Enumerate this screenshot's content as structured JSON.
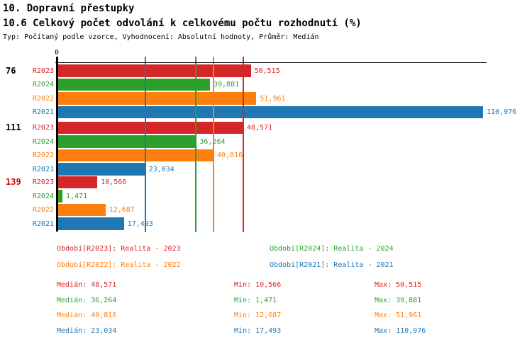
{
  "header": {
    "title_line1": "10. Dopravní přestupky",
    "title_line2": "10.6 Celkový počet odvolání k celkovému počtu rozhodnutí (%)",
    "subtitle": "Typ: Počítaný podle vzorce, Vyhodnocení: Absolutní hodnoty, Průměr: Medián"
  },
  "colors": {
    "red": "#d62728",
    "green": "#2ca02c",
    "orange": "#ff7f0e",
    "blue": "#1f77b4",
    "highlight_red": "#dd0000",
    "black": "#000000"
  },
  "chart_data": {
    "type": "bar",
    "orientation": "horizontal",
    "title": "10.6 Celkový počet odvolání k celkovému počtu rozhodnutí (%)",
    "axis": {
      "zero_label": "0",
      "xlim": [
        0,
        110976
      ],
      "grid": "median-lines-per-series"
    },
    "categories": [
      {
        "label": "76",
        "color": "#000000"
      },
      {
        "label": "111",
        "color": "#000000"
      },
      {
        "label": "139",
        "color": "#dd0000"
      }
    ],
    "series": [
      {
        "name": "R2023",
        "color": "#d62728",
        "values": [
          50515,
          48571,
          10566
        ],
        "value_labels": [
          "50,515",
          "48,571",
          "10,566"
        ],
        "median": 48571
      },
      {
        "name": "R2024",
        "color": "#2ca02c",
        "values": [
          39881,
          36264,
          1471
        ],
        "value_labels": [
          "39,881",
          "36,264",
          "1,471"
        ],
        "median": 36264
      },
      {
        "name": "R2022",
        "color": "#ff7f0e",
        "values": [
          51961,
          40816,
          12687
        ],
        "value_labels": [
          "51,961",
          "40,816",
          "12,687"
        ],
        "median": 40816
      },
      {
        "name": "R2021",
        "color": "#1f77b4",
        "values": [
          110976,
          23034,
          17493
        ],
        "value_labels": [
          "110,976",
          "23,034",
          "17,493"
        ],
        "median": 23034
      }
    ]
  },
  "legend": {
    "items": [
      {
        "text": "Období[R2023]: Realita - 2023",
        "color": "#d62728"
      },
      {
        "text": "Období[R2024]: Realita - 2024",
        "color": "#2ca02c"
      },
      {
        "text": "Období[R2022]: Realita - 2022",
        "color": "#ff7f0e"
      },
      {
        "text": "Období[R2021]: Realita - 2021",
        "color": "#1f77b4"
      }
    ]
  },
  "stats": {
    "rows": [
      {
        "median": "Medián: 48,571",
        "min": "Min: 10,566",
        "max": "Max: 50,515",
        "color": "#d62728"
      },
      {
        "median": "Medián: 36,264",
        "min": "Min: 1,471",
        "max": "Max: 39,881",
        "color": "#2ca02c"
      },
      {
        "median": "Medián: 40,816",
        "min": "Min: 12,687",
        "max": "Max: 51,961",
        "color": "#ff7f0e"
      },
      {
        "median": "Medián: 23,034",
        "min": "Min: 17,493",
        "max": "Max: 110,976",
        "color": "#1f77b4"
      }
    ]
  }
}
